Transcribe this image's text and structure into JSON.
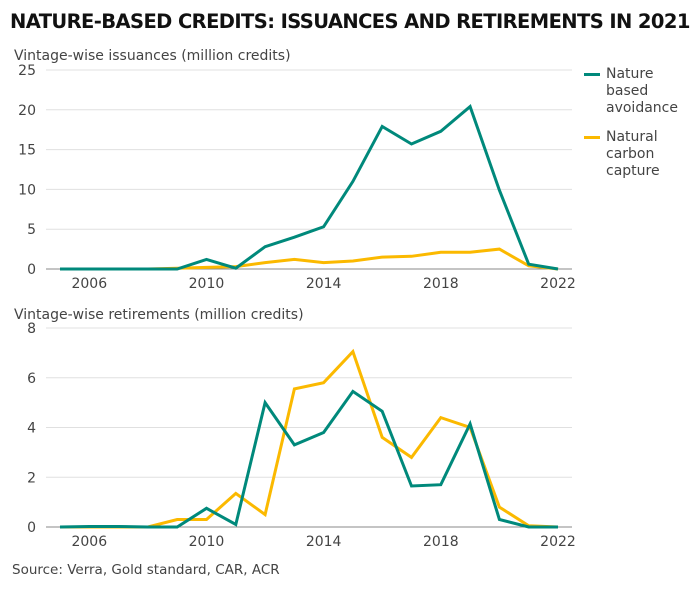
{
  "title": "NATURE-BASED CREDITS: ISSUANCES AND RETIREMENTS IN 2021",
  "source": "Source: Verra, Gold standard, CAR, ACR",
  "colors": {
    "avoidance": "#00897b",
    "capture": "#fbb900",
    "grid": "#e0e0e0",
    "baseline": "#888888"
  },
  "legend": [
    {
      "lines": [
        "Nature",
        "based",
        "avoidance"
      ],
      "color": "#00897b"
    },
    {
      "lines": [
        "Natural",
        "carbon",
        "capture"
      ],
      "color": "#fbb900"
    }
  ],
  "chart_data": [
    {
      "type": "line",
      "subtitle": "Vintage-wise issuances (million credits)",
      "x": [
        2005,
        2006,
        2007,
        2008,
        2009,
        2010,
        2011,
        2012,
        2013,
        2014,
        2015,
        2016,
        2017,
        2018,
        2019,
        2020,
        2021,
        2022
      ],
      "xticks": [
        "2006",
        "2010",
        "2014",
        "2018",
        "2022"
      ],
      "xtick_values": [
        2006,
        2010,
        2014,
        2018,
        2022
      ],
      "yticks": [
        "0",
        "5",
        "10",
        "15",
        "20",
        "25"
      ],
      "ylim": [
        0,
        25
      ],
      "xlim": [
        2005,
        2022
      ],
      "grid": true,
      "legend_position": "right",
      "series": [
        {
          "name": "Nature based avoidance",
          "color": "#00897b",
          "values": [
            0,
            0,
            0,
            0,
            0,
            1.2,
            0.1,
            2.8,
            4.0,
            5.3,
            11.0,
            17.9,
            15.7,
            17.3,
            20.4,
            9.9,
            0.6,
            0
          ]
        },
        {
          "name": "Natural carbon capture",
          "color": "#fbb900",
          "values": [
            0,
            0,
            0,
            0,
            0.1,
            0.2,
            0.3,
            0.8,
            1.2,
            0.8,
            1.0,
            1.5,
            1.6,
            2.1,
            2.1,
            2.5,
            0.4,
            0
          ]
        }
      ]
    },
    {
      "type": "line",
      "subtitle": "Vintage-wise retirements (million credits)",
      "x": [
        2005,
        2006,
        2007,
        2008,
        2009,
        2010,
        2011,
        2012,
        2013,
        2014,
        2015,
        2016,
        2017,
        2018,
        2019,
        2020,
        2021,
        2022
      ],
      "xticks": [
        "2006",
        "2010",
        "2014",
        "2018",
        "2022"
      ],
      "xtick_values": [
        2006,
        2010,
        2014,
        2018,
        2022
      ],
      "yticks": [
        "0",
        "2",
        "4",
        "6",
        "8"
      ],
      "ylim": [
        0,
        8
      ],
      "xlim": [
        2005,
        2022
      ],
      "grid": true,
      "series": [
        {
          "name": "Nature based avoidance",
          "color": "#00897b",
          "values": [
            0,
            0.02,
            0.02,
            0,
            0,
            0.75,
            0.1,
            5.0,
            3.3,
            3.8,
            5.45,
            4.65,
            1.65,
            1.7,
            4.15,
            0.3,
            0,
            0
          ]
        },
        {
          "name": "Natural carbon capture",
          "color": "#fbb900",
          "values": [
            0,
            0,
            0,
            0,
            0.3,
            0.3,
            1.35,
            0.5,
            5.55,
            5.8,
            7.05,
            3.6,
            2.8,
            4.4,
            4.0,
            0.8,
            0.05,
            0
          ]
        }
      ]
    }
  ]
}
